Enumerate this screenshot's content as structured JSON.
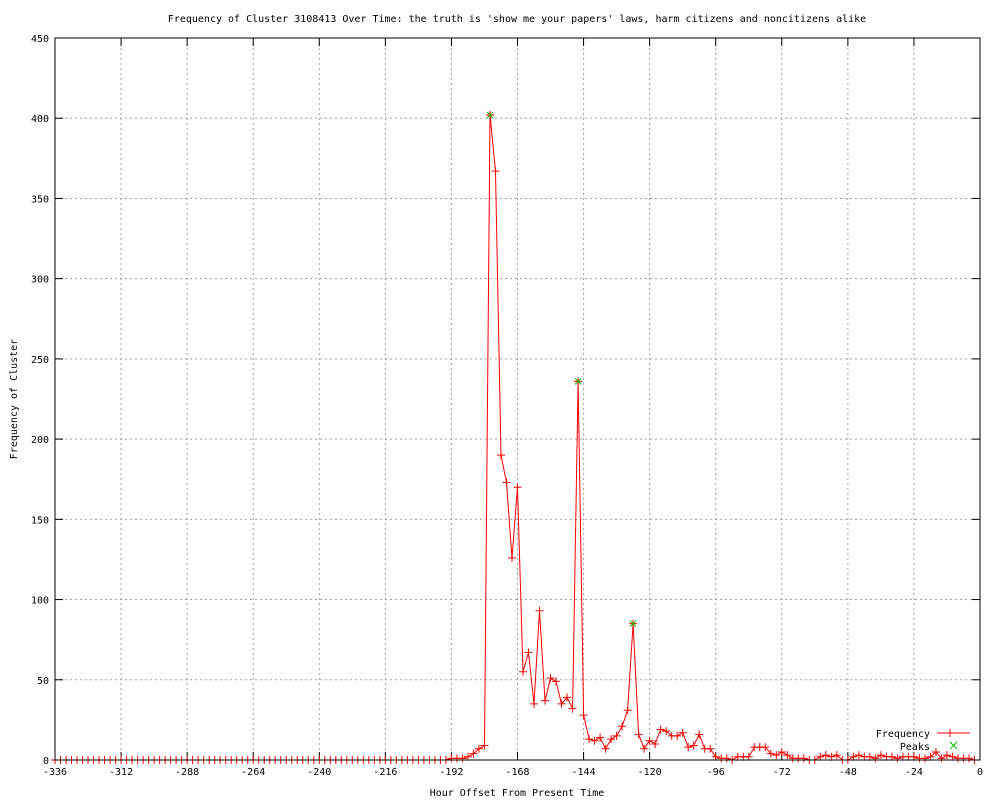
{
  "chart_data": {
    "type": "line",
    "title": "Frequency of Cluster 3108413 Over Time: the truth is 'show me your papers' laws, harm citizens and noncitizens alike",
    "xlabel": "Hour Offset From Present Time",
    "ylabel": "Frequency of Cluster",
    "xlim": [
      -336,
      0
    ],
    "ylim": [
      0,
      450
    ],
    "xticks": [
      -336,
      -312,
      -288,
      -264,
      -240,
      -216,
      -192,
      -168,
      -144,
      -120,
      -96,
      -72,
      -48,
      -24,
      0
    ],
    "yticks": [
      0,
      50,
      100,
      150,
      200,
      250,
      300,
      350,
      400,
      450
    ],
    "grid": true,
    "legend_placement": "bottom-right",
    "series": [
      {
        "name": "Frequency",
        "color": "#ff0000",
        "marker": "plus",
        "x": [
          -336,
          -334,
          -332,
          -330,
          -328,
          -326,
          -324,
          -322,
          -320,
          -318,
          -316,
          -314,
          -312,
          -310,
          -308,
          -306,
          -304,
          -302,
          -300,
          -298,
          -296,
          -294,
          -292,
          -290,
          -288,
          -286,
          -284,
          -282,
          -280,
          -278,
          -276,
          -274,
          -272,
          -270,
          -268,
          -266,
          -264,
          -262,
          -260,
          -258,
          -256,
          -254,
          -252,
          -250,
          -248,
          -246,
          -244,
          -242,
          -240,
          -238,
          -236,
          -234,
          -232,
          -230,
          -228,
          -226,
          -224,
          -222,
          -220,
          -218,
          -216,
          -214,
          -212,
          -210,
          -208,
          -206,
          -204,
          -202,
          -200,
          -198,
          -196,
          -194,
          -192,
          -190,
          -188,
          -186,
          -184,
          -182,
          -180,
          -178,
          -176,
          -174,
          -172,
          -170,
          -168,
          -166,
          -164,
          -162,
          -160,
          -158,
          -156,
          -154,
          -152,
          -150,
          -148,
          -146,
          -144,
          -142,
          -140,
          -138,
          -136,
          -134,
          -132,
          -130,
          -128,
          -126,
          -124,
          -122,
          -120,
          -118,
          -116,
          -114,
          -112,
          -110,
          -108,
          -106,
          -104,
          -102,
          -100,
          -98,
          -96,
          -94,
          -92,
          -90,
          -88,
          -86,
          -84,
          -82,
          -80,
          -78,
          -76,
          -74,
          -72,
          -70,
          -68,
          -66,
          -64,
          -62,
          -60,
          -58,
          -56,
          -54,
          -52,
          -50,
          -48,
          -46,
          -44,
          -42,
          -40,
          -38,
          -36,
          -34,
          -32,
          -30,
          -28,
          -26,
          -24,
          -22,
          -20,
          -18,
          -16,
          -14,
          -12,
          -10,
          -8,
          -6,
          -4,
          -2
        ],
        "y": [
          0,
          0,
          0,
          0,
          0,
          0,
          0,
          0,
          0,
          0,
          0,
          0,
          0,
          0,
          0,
          0,
          0,
          0,
          0,
          0,
          0,
          0,
          0,
          0,
          0,
          0,
          0,
          0,
          0,
          0,
          0,
          0,
          0,
          0,
          0,
          0,
          0,
          0,
          0,
          0,
          0,
          0,
          0,
          0,
          0,
          0,
          0,
          0,
          0,
          0,
          0,
          0,
          0,
          0,
          0,
          0,
          0,
          0,
          0,
          0,
          0,
          0,
          0,
          0,
          0,
          0,
          0,
          0,
          0,
          0,
          0,
          0,
          1,
          1,
          1,
          2,
          4,
          7,
          9,
          402,
          367,
          190,
          173,
          126,
          170,
          55,
          67,
          35,
          93,
          37,
          51,
          49,
          35,
          39,
          32,
          236,
          28,
          13,
          12,
          14,
          7,
          13,
          15,
          21,
          31,
          85,
          16,
          7,
          12,
          10,
          19,
          18,
          15,
          15,
          17,
          8,
          9,
          16,
          7,
          7,
          2,
          1,
          1,
          0,
          2,
          2,
          2,
          8,
          8,
          8,
          4,
          3,
          5,
          3,
          1,
          1,
          1,
          0,
          0,
          2,
          3,
          2,
          3,
          0,
          0,
          2,
          3,
          2,
          2,
          1,
          3,
          2,
          2,
          1,
          2,
          2,
          2,
          1,
          1,
          2,
          5,
          1,
          3,
          2,
          1,
          1,
          1,
          0
        ]
      },
      {
        "name": "Peaks",
        "color": "#00c000",
        "marker": "x",
        "x": [
          -178,
          -146,
          -126
        ],
        "y": [
          402,
          236,
          85
        ]
      }
    ]
  }
}
